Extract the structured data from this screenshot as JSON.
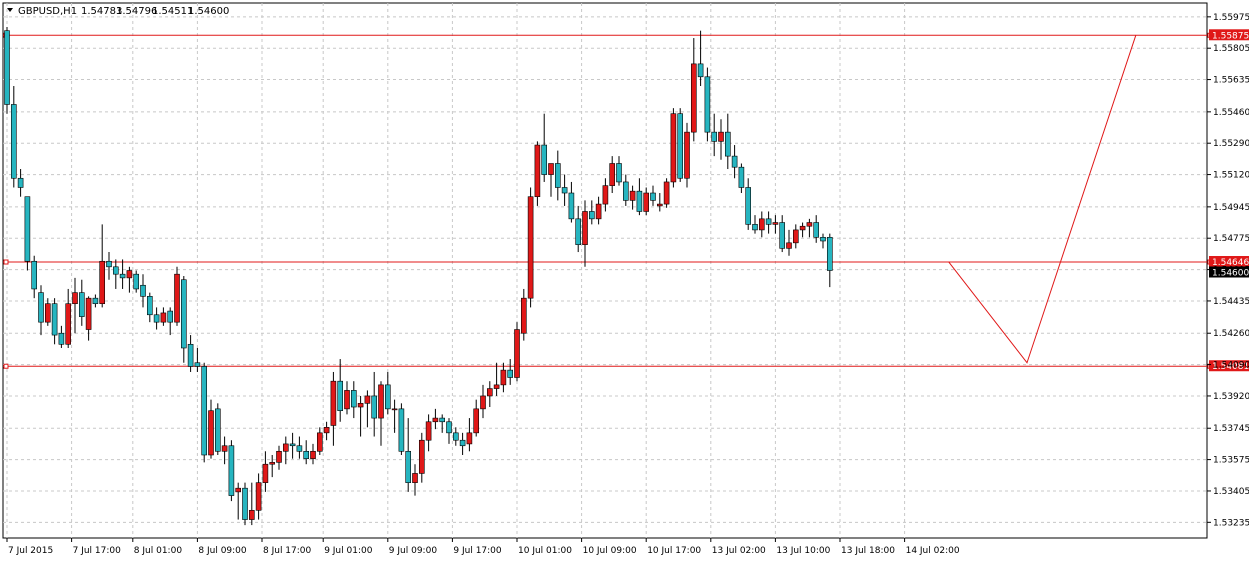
{
  "header": {
    "symbol": "GBPUSD,H1",
    "open": "1.54783",
    "high": "1.54796",
    "low": "1.54511",
    "close": "1.54600"
  },
  "chart_data": {
    "type": "candlestick",
    "title": "GBPUSD,H1  1.54783 1.54796 1.54511 1.54600",
    "ylim": [
      1.5315,
      1.5605
    ],
    "y_ticks": [
      "1.55975",
      "1.55805",
      "1.55635",
      "1.55460",
      "1.55290",
      "1.55120",
      "1.54945",
      "1.54775",
      "1.54605",
      "1.54435",
      "1.54260",
      "1.54090",
      "1.53920",
      "1.53745",
      "1.53575",
      "1.53405",
      "1.53235"
    ],
    "x_ticks": [
      "7 Jul 2015",
      "7 Jul 17:00",
      "8 Jul 01:00",
      "8 Jul 09:00",
      "8 Jul 17:00",
      "9 Jul 01:00",
      "9 Jul 09:00",
      "9 Jul 17:00",
      "10 Jul 01:00",
      "10 Jul 09:00",
      "10 Jul 17:00",
      "13 Jul 02:00",
      "13 Jul 10:00",
      "13 Jul 18:00",
      "14 Jul 02:00"
    ],
    "grid": true,
    "up_color": "#e01818",
    "down_color": "#26b5c0",
    "candles": [
      [
        1.559,
        1.5592,
        1.5545,
        1.555
      ],
      [
        1.555,
        1.556,
        1.5505,
        1.551
      ],
      [
        1.551,
        1.5515,
        1.55,
        1.5505
      ],
      [
        1.55,
        1.55,
        1.546,
        1.5465
      ],
      [
        1.5465,
        1.5468,
        1.5445,
        1.545
      ],
      [
        1.5448,
        1.5452,
        1.5425,
        1.5432
      ],
      [
        1.5432,
        1.5445,
        1.543,
        1.5442
      ],
      [
        1.5442,
        1.5445,
        1.542,
        1.5425
      ],
      [
        1.5426,
        1.543,
        1.5418,
        1.542
      ],
      [
        1.542,
        1.545,
        1.5418,
        1.5442
      ],
      [
        1.5442,
        1.5456,
        1.5426,
        1.5448
      ],
      [
        1.5448,
        1.5455,
        1.543,
        1.5435
      ],
      [
        1.5428,
        1.5446,
        1.5422,
        1.5445
      ],
      [
        1.5445,
        1.5447,
        1.544,
        1.5442
      ],
      [
        1.5442,
        1.5485,
        1.544,
        1.5465
      ],
      [
        1.5465,
        1.547,
        1.5455,
        1.5462
      ],
      [
        1.5462,
        1.5466,
        1.545,
        1.5458
      ],
      [
        1.5458,
        1.5466,
        1.545,
        1.5456
      ],
      [
        1.5456,
        1.5462,
        1.5448,
        1.546
      ],
      [
        1.5458,
        1.546,
        1.5448,
        1.545
      ],
      [
        1.5452,
        1.5458,
        1.544,
        1.5446
      ],
      [
        1.5446,
        1.5448,
        1.5432,
        1.5436
      ],
      [
        1.5436,
        1.544,
        1.5428,
        1.5432
      ],
      [
        1.5432,
        1.544,
        1.543,
        1.5437
      ],
      [
        1.5438,
        1.544,
        1.5425,
        1.5432
      ],
      [
        1.5432,
        1.5462,
        1.543,
        1.5458
      ],
      [
        1.5455,
        1.5457,
        1.541,
        1.5418
      ],
      [
        1.542,
        1.5425,
        1.5405,
        1.5408
      ],
      [
        1.541,
        1.5418,
        1.5405,
        1.5408
      ],
      [
        1.5408,
        1.541,
        1.5356,
        1.536
      ],
      [
        1.536,
        1.539,
        1.5358,
        1.5384
      ],
      [
        1.5385,
        1.5388,
        1.536,
        1.5362
      ],
      [
        1.5362,
        1.537,
        1.5355,
        1.5365
      ],
      [
        1.5365,
        1.5368,
        1.5335,
        1.5338
      ],
      [
        1.534,
        1.5345,
        1.5325,
        1.5342
      ],
      [
        1.5342,
        1.5345,
        1.5322,
        1.5325
      ],
      [
        1.5325,
        1.5345,
        1.5322,
        1.533
      ],
      [
        1.533,
        1.535,
        1.5325,
        1.5345
      ],
      [
        1.5345,
        1.5362,
        1.534,
        1.5355
      ],
      [
        1.5355,
        1.536,
        1.5348,
        1.5356
      ],
      [
        1.5356,
        1.5365,
        1.5352,
        1.5362
      ],
      [
        1.5362,
        1.537,
        1.5355,
        1.5366
      ],
      [
        1.5366,
        1.5372,
        1.5358,
        1.5365
      ],
      [
        1.5365,
        1.537,
        1.5358,
        1.5362
      ],
      [
        1.5362,
        1.5368,
        1.5355,
        1.5358
      ],
      [
        1.5358,
        1.5366,
        1.5355,
        1.5362
      ],
      [
        1.5362,
        1.5375,
        1.536,
        1.5372
      ],
      [
        1.5372,
        1.5378,
        1.5368,
        1.5375
      ],
      [
        1.5376,
        1.5405,
        1.5365,
        1.54
      ],
      [
        1.54,
        1.5412,
        1.5378,
        1.5384
      ],
      [
        1.5385,
        1.54,
        1.5382,
        1.5395
      ],
      [
        1.5395,
        1.54,
        1.538,
        1.5386
      ],
      [
        1.5386,
        1.5392,
        1.537,
        1.5388
      ],
      [
        1.5388,
        1.5395,
        1.5375,
        1.5392
      ],
      [
        1.5392,
        1.5405,
        1.537,
        1.538
      ],
      [
        1.538,
        1.54,
        1.5365,
        1.5398
      ],
      [
        1.5398,
        1.5405,
        1.5382,
        1.5385
      ],
      [
        1.5385,
        1.539,
        1.5372,
        1.5385
      ],
      [
        1.5385,
        1.5388,
        1.536,
        1.5362
      ],
      [
        1.5362,
        1.538,
        1.534,
        1.5345
      ],
      [
        1.5345,
        1.5355,
        1.5338,
        1.535
      ],
      [
        1.535,
        1.5372,
        1.5345,
        1.5368
      ],
      [
        1.5368,
        1.5382,
        1.5362,
        1.5378
      ],
      [
        1.5378,
        1.5385,
        1.5374,
        1.538
      ],
      [
        1.538,
        1.5382,
        1.5372,
        1.5378
      ],
      [
        1.5378,
        1.538,
        1.5366,
        1.5372
      ],
      [
        1.5372,
        1.5375,
        1.5365,
        1.5368
      ],
      [
        1.5368,
        1.5372,
        1.536,
        1.5365
      ],
      [
        1.5366,
        1.538,
        1.5362,
        1.5372
      ],
      [
        1.5372,
        1.539,
        1.537,
        1.5385
      ],
      [
        1.5385,
        1.5398,
        1.538,
        1.5392
      ],
      [
        1.5392,
        1.54,
        1.5386,
        1.5396
      ],
      [
        1.5396,
        1.541,
        1.5392,
        1.5398
      ],
      [
        1.5398,
        1.541,
        1.5394,
        1.5406
      ],
      [
        1.5406,
        1.5412,
        1.5398,
        1.5402
      ],
      [
        1.5402,
        1.5432,
        1.54,
        1.5428
      ],
      [
        1.5426,
        1.545,
        1.5422,
        1.5445
      ],
      [
        1.5445,
        1.5505,
        1.544,
        1.55
      ],
      [
        1.55,
        1.553,
        1.5495,
        1.5528
      ],
      [
        1.5528,
        1.5545,
        1.5508,
        1.5512
      ],
      [
        1.5512,
        1.5518,
        1.55,
        1.5518
      ],
      [
        1.5518,
        1.5525,
        1.5498,
        1.5505
      ],
      [
        1.5505,
        1.5512,
        1.5495,
        1.5502
      ],
      [
        1.5502,
        1.5508,
        1.5486,
        1.5488
      ],
      [
        1.5488,
        1.5495,
        1.547,
        1.5474
      ],
      [
        1.5474,
        1.5498,
        1.5462,
        1.5492
      ],
      [
        1.5492,
        1.5498,
        1.5485,
        1.5488
      ],
      [
        1.5488,
        1.55,
        1.5485,
        1.5496
      ],
      [
        1.5496,
        1.551,
        1.5492,
        1.5506
      ],
      [
        1.5506,
        1.5522,
        1.5502,
        1.5518
      ],
      [
        1.5518,
        1.5522,
        1.5506,
        1.5508
      ],
      [
        1.5508,
        1.5512,
        1.5495,
        1.5498
      ],
      [
        1.5498,
        1.5506,
        1.5493,
        1.5503
      ],
      [
        1.5503,
        1.551,
        1.549,
        1.5492
      ],
      [
        1.5492,
        1.5505,
        1.549,
        1.5502
      ],
      [
        1.5502,
        1.5506,
        1.5495,
        1.5498
      ],
      [
        1.5495,
        1.5502,
        1.5492,
        1.5496
      ],
      [
        1.5496,
        1.551,
        1.5494,
        1.5508
      ],
      [
        1.5508,
        1.5548,
        1.5505,
        1.5545
      ],
      [
        1.5545,
        1.5548,
        1.5508,
        1.551
      ],
      [
        1.551,
        1.554,
        1.5505,
        1.5535
      ],
      [
        1.5535,
        1.5586,
        1.553,
        1.5572
      ],
      [
        1.5572,
        1.559,
        1.556,
        1.5565
      ],
      [
        1.5565,
        1.557,
        1.553,
        1.5535
      ],
      [
        1.5535,
        1.5545,
        1.5522,
        1.553
      ],
      [
        1.553,
        1.5542,
        1.552,
        1.5535
      ],
      [
        1.5535,
        1.5545,
        1.5515,
        1.5522
      ],
      [
        1.5522,
        1.5528,
        1.551,
        1.5516
      ],
      [
        1.5516,
        1.5518,
        1.5502,
        1.5505
      ],
      [
        1.5505,
        1.551,
        1.5482,
        1.5485
      ],
      [
        1.5485,
        1.549,
        1.548,
        1.5482
      ],
      [
        1.5482,
        1.5492,
        1.5478,
        1.5488
      ],
      [
        1.5488,
        1.5492,
        1.548,
        1.5485
      ],
      [
        1.5485,
        1.549,
        1.548,
        1.5486
      ],
      [
        1.5486,
        1.549,
        1.547,
        1.5472
      ],
      [
        1.5472,
        1.5482,
        1.5468,
        1.5475
      ],
      [
        1.5475,
        1.5485,
        1.5472,
        1.5482
      ],
      [
        1.5482,
        1.5486,
        1.5478,
        1.5484
      ],
      [
        1.5484,
        1.5488,
        1.5478,
        1.5486
      ],
      [
        1.5486,
        1.549,
        1.5475,
        1.5478
      ],
      [
        1.5478,
        1.548,
        1.5472,
        1.5476
      ],
      [
        1.5478,
        1.548,
        1.5451,
        1.546
      ]
    ],
    "levels": [
      {
        "value": 1.55875,
        "label": "1.55875"
      },
      {
        "value": 1.54646,
        "label": "1.54646"
      },
      {
        "value": 1.54081,
        "label": "1.54081"
      }
    ],
    "current_price": {
      "value": 1.546,
      "label": "1.54600"
    },
    "projection": [
      {
        "bar": 138.5,
        "price": 1.54646
      },
      {
        "bar": 150,
        "price": 1.541
      },
      {
        "bar": 166,
        "price": 1.55875
      }
    ],
    "level_color": "#e01818"
  }
}
